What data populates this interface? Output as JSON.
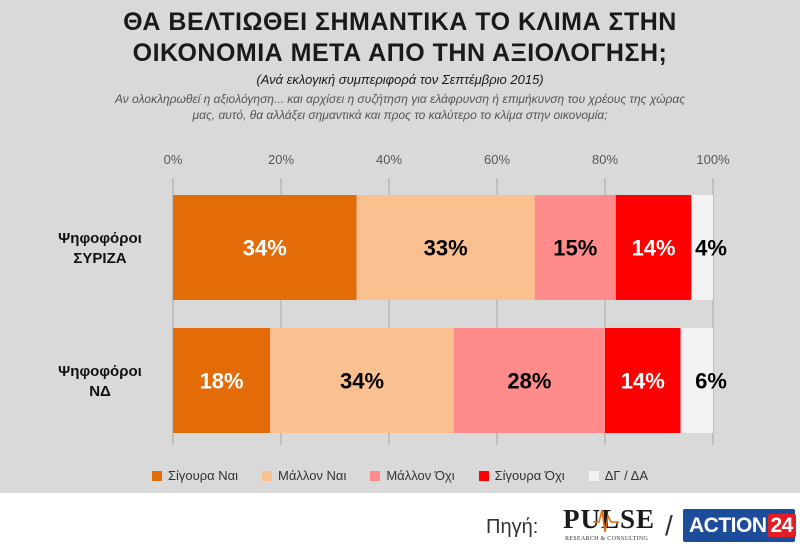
{
  "header": {
    "title_line1": "ΘΑ ΒΕΛΤΙΩΘΕΙ ΣΗΜΑΝΤΙΚΑ ΤΟ ΚΛΙΜΑ ΣΤΗΝ",
    "title_line2": "ΟΙΚΟΝΟΜΙΑ ΜΕΤΑ ΑΠΟ ΤΗΝ ΑΞΙΟΛΟΓΗΣΗ;",
    "subtitle": "(Ανά εκλογική συμπεριφορά τον Σεπτέμβριο 2015)",
    "question": "Αν ολοκληρωθεί η αξιολόγηση... και αρχίσει η συζήτηση για ελάφρυνση ή επιμήκυνση του χρέους της χώρας μας, αυτό, θα αλλάξει σημαντικά και προς το καλύτερο το κλίμα στην οικονομία;"
  },
  "chart_data": {
    "type": "bar",
    "orientation": "horizontal",
    "stacked": true,
    "categories": [
      "Ψηφοφόροι ΣΥΡΙΖΑ",
      "Ψηφοφόροι ΝΔ"
    ],
    "category_lines": [
      [
        "Ψηφοφόροι",
        "ΣΥΡΙΖΑ"
      ],
      [
        "Ψηφοφόροι",
        "ΝΔ"
      ]
    ],
    "series": [
      {
        "name": "Σίγουρα Ναι",
        "values": [
          34,
          18
        ],
        "labels": [
          "34%",
          "18%"
        ],
        "color": "#e36c09",
        "label_color": "#ffffff"
      },
      {
        "name": "Μάλλον Ναι",
        "values": [
          33,
          34
        ],
        "labels": [
          "33%",
          "34%"
        ],
        "color": "#fac090",
        "label_color": "#000000"
      },
      {
        "name": "Μάλλον Όχι",
        "values": [
          15,
          28
        ],
        "labels": [
          "15%",
          "28%"
        ],
        "color": "#ff8b8b",
        "label_color": "#000000"
      },
      {
        "name": "Σίγουρα Όχι",
        "values": [
          14,
          14
        ],
        "labels": [
          "14%",
          "14%"
        ],
        "color": "#ff0000",
        "label_color": "#ffffff"
      },
      {
        "name": "ΔΓ / ΔΑ",
        "values": [
          4,
          6
        ],
        "labels": [
          "4%",
          "6%"
        ],
        "color": "#f2f2f2",
        "label_color": "#000000"
      }
    ],
    "xlim": [
      0,
      100
    ],
    "xticks": [
      "0%",
      "20%",
      "40%",
      "60%",
      "80%",
      "100%"
    ],
    "grid": true,
    "legend": "bottom"
  },
  "footer": {
    "source_label": "Πηγή:",
    "pulse_text": "PULSE",
    "pulse_sub": "RESEARCH & CONSULTING",
    "separator": "/",
    "action_text": "ACTION",
    "action_number": "24"
  }
}
